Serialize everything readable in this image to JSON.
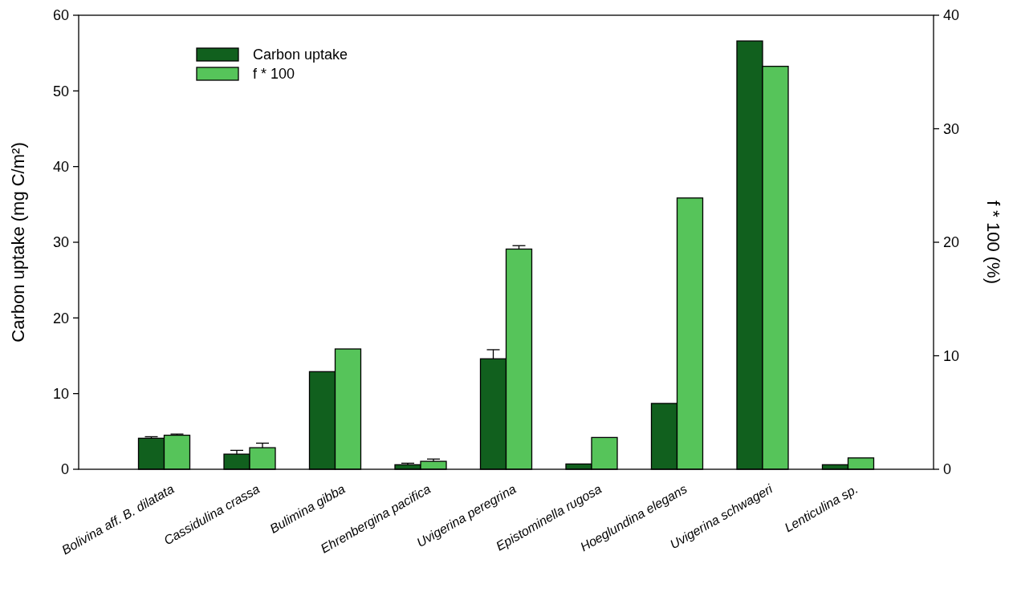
{
  "chart_data": {
    "type": "bar",
    "categories": [
      "Bolivina aff. B. dilatata",
      "Cassidulina crassa",
      "Bulimina gibba",
      "Ehrenbergina pacifica",
      "Uvigerina peregrina",
      "Epistominella rugosa",
      "Hoeglundina elegans",
      "Uvigerina schwageri",
      "Lenticulina sp."
    ],
    "series": [
      {
        "name": "Carbon uptake",
        "color": "#11601e",
        "values": [
          4.1,
          2.0,
          12.9,
          0.6,
          14.6,
          0.7,
          8.7,
          56.6,
          0.6
        ],
        "errors": [
          [
            4.1,
            4.3
          ],
          [
            2.0,
            2.5
          ],
          null,
          [
            0.6,
            0.8
          ],
          [
            14.6,
            15.8
          ],
          null,
          null,
          null,
          null
        ]
      },
      {
        "name": "f * 100",
        "color": "#56c45a",
        "axis": "y2",
        "values": [
          3.0,
          1.9,
          10.6,
          0.7,
          19.4,
          2.8,
          23.9,
          35.5,
          1.0
        ],
        "errors": [
          [
            3.0,
            3.1
          ],
          [
            1.9,
            2.3
          ],
          null,
          [
            0.7,
            0.9
          ],
          [
            19.4,
            19.7
          ],
          null,
          null,
          null,
          null
        ]
      }
    ],
    "ylabel": "Carbon uptake (mg C/m²)",
    "y2label": "f * 100 (%)",
    "ylim": [
      0,
      60
    ],
    "yticks": [
      0,
      10,
      20,
      30,
      40,
      50,
      60
    ],
    "y2lim": [
      0,
      40
    ],
    "y2ticks": [
      0,
      10,
      20,
      30,
      40
    ],
    "legend": "top left",
    "grid": false
  }
}
